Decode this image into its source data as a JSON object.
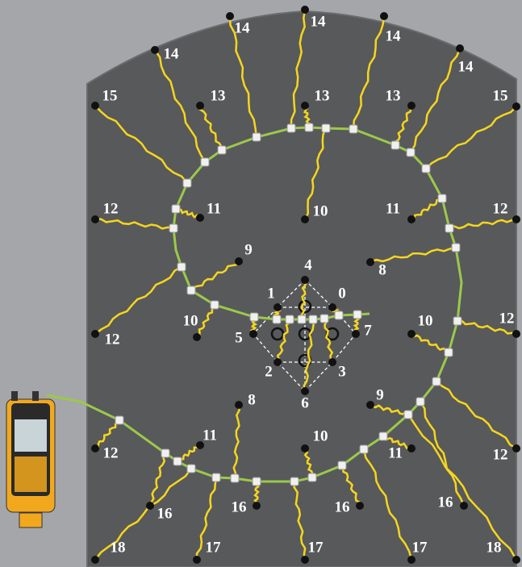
{
  "nodes": [
    {
      "label": "14"
    },
    {
      "label": "14"
    },
    {
      "label": "14"
    },
    {
      "label": "14"
    },
    {
      "label": "14"
    },
    {
      "label": "15"
    },
    {
      "label": "13"
    },
    {
      "label": "13"
    },
    {
      "label": "13"
    },
    {
      "label": "15"
    },
    {
      "label": "12"
    },
    {
      "label": "11"
    },
    {
      "label": "10"
    },
    {
      "label": "11"
    },
    {
      "label": "12"
    },
    {
      "label": "9"
    },
    {
      "label": "8"
    },
    {
      "label": "12"
    },
    {
      "label": "10"
    },
    {
      "label": "10"
    },
    {
      "label": "12"
    },
    {
      "label": "4"
    },
    {
      "label": "1"
    },
    {
      "label": "0"
    },
    {
      "label": "5"
    },
    {
      "label": "7"
    },
    {
      "label": "2"
    },
    {
      "label": "3"
    },
    {
      "label": "6"
    },
    {
      "label": "8"
    },
    {
      "label": "9"
    },
    {
      "label": "12"
    },
    {
      "label": "11"
    },
    {
      "label": "10"
    },
    {
      "label": "11"
    },
    {
      "label": "12"
    },
    {
      "label": "16"
    },
    {
      "label": "16"
    },
    {
      "label": "16"
    },
    {
      "label": "16"
    },
    {
      "label": "18"
    },
    {
      "label": "17"
    },
    {
      "label": "17"
    },
    {
      "label": "17"
    },
    {
      "label": "18"
    }
  ]
}
